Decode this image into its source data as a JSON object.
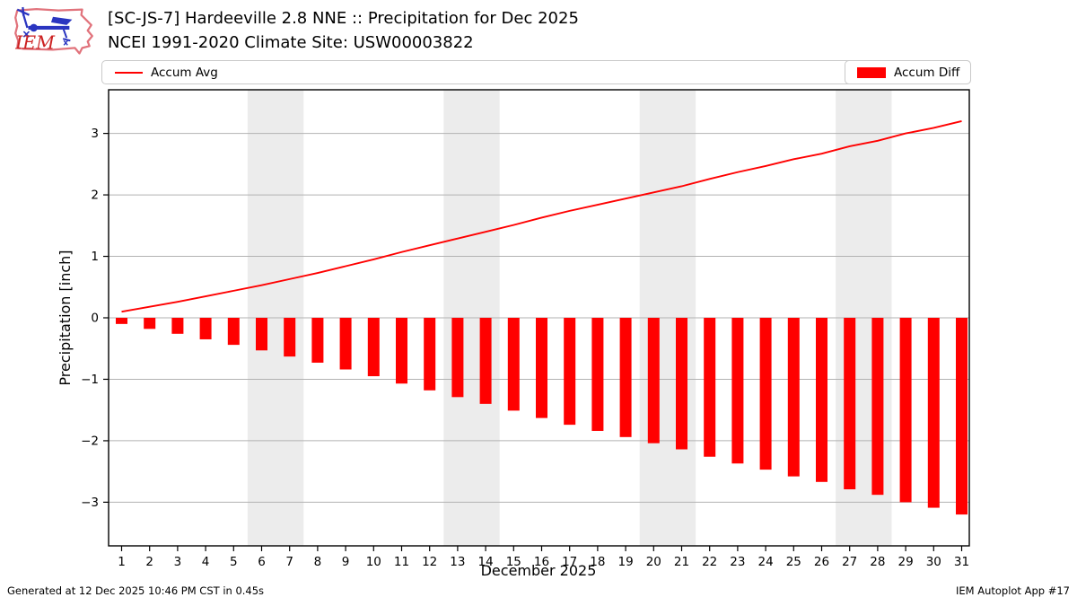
{
  "header": {
    "logo_text": "IEM",
    "title_line1": "[SC-JS-7] Hardeeville 2.8 NNE :: Precipitation for Dec 2025",
    "title_line2": "NCEI 1991-2020 Climate Site: USW00003822"
  },
  "legend": {
    "avg_label": "Accum Avg",
    "diff_label": "Accum Diff"
  },
  "chart_data": {
    "type": "bar+line",
    "title": "[SC-JS-7] Hardeeville 2.8 NNE :: Precipitation for Dec 2025",
    "subtitle": "NCEI 1991-2020 Climate Site: USW00003822",
    "xlabel": "December 2025",
    "ylabel": "Precipitation [inch]",
    "x": [
      1,
      2,
      3,
      4,
      5,
      6,
      7,
      8,
      9,
      10,
      11,
      12,
      13,
      14,
      15,
      16,
      17,
      18,
      19,
      20,
      21,
      22,
      23,
      24,
      25,
      26,
      27,
      28,
      29,
      30,
      31
    ],
    "series": [
      {
        "name": "Accum Avg",
        "type": "line",
        "color": "#ff0000",
        "values": [
          0.1,
          0.18,
          0.26,
          0.35,
          0.44,
          0.53,
          0.63,
          0.73,
          0.84,
          0.95,
          1.07,
          1.18,
          1.29,
          1.4,
          1.51,
          1.63,
          1.74,
          1.84,
          1.94,
          2.04,
          2.14,
          2.26,
          2.37,
          2.47,
          2.58,
          2.67,
          2.79,
          2.88,
          3.0,
          3.09,
          3.2
        ]
      },
      {
        "name": "Accum Diff",
        "type": "bar",
        "color": "#ff0000",
        "values": [
          -0.1,
          -0.18,
          -0.26,
          -0.35,
          -0.44,
          -0.53,
          -0.63,
          -0.73,
          -0.84,
          -0.95,
          -1.07,
          -1.18,
          -1.29,
          -1.4,
          -1.51,
          -1.63,
          -1.74,
          -1.84,
          -1.94,
          -2.04,
          -2.14,
          -2.26,
          -2.37,
          -2.47,
          -2.58,
          -2.67,
          -2.79,
          -2.88,
          -3.0,
          -3.09,
          -3.2
        ]
      }
    ],
    "ylim": [
      -3.71,
      3.71
    ],
    "yticks": [
      -3,
      -2,
      -1,
      0,
      1,
      2,
      3
    ],
    "grid": true,
    "legend_position": "top",
    "weekend_bands": [
      [
        6,
        7
      ],
      [
        13,
        14
      ],
      [
        20,
        21
      ],
      [
        27,
        28
      ]
    ],
    "colors": {
      "band": "#ececec",
      "grid": "#b2b2b2",
      "axis": "#000000",
      "accent": "#ff0000"
    }
  },
  "footer": {
    "left": "Generated at 12 Dec 2025 10:46 PM CST in 0.45s",
    "right": "IEM Autoplot App #17"
  }
}
